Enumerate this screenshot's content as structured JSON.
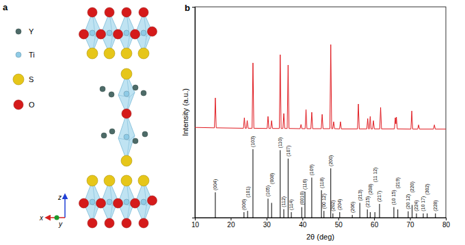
{
  "panel_a": {
    "label": "a",
    "legend": [
      {
        "label": "Y",
        "color": "#4d6b68"
      },
      {
        "label": "Ti",
        "color": "#8fcbe6"
      },
      {
        "label": "S",
        "color": "#e6c619"
      },
      {
        "label": "O",
        "color": "#d51a1a"
      }
    ],
    "axes": [
      {
        "label": "z",
        "color": "#1f3fd6"
      },
      {
        "label": "x",
        "color": "#d61f1f"
      },
      {
        "label": "y",
        "color": "#1a9a2a"
      }
    ]
  },
  "chart_data": {
    "type": "line",
    "title": "b",
    "x_label": "2θ (deg)",
    "y_label": "Intensity (a.u.)",
    "xlim": [
      10,
      80
    ],
    "xticks": [
      10,
      20,
      30,
      40,
      50,
      60,
      70,
      80
    ],
    "ylim": [
      0,
      100
    ],
    "tick_labels": "x",
    "series": [
      {
        "type": "line",
        "color": "#e0191f",
        "x": [
          10,
          15.45,
          15.7,
          15.95,
          23.55,
          23.8,
          24.05,
          24.35,
          24.6,
          24.85,
          25.95,
          26.2,
          26.45,
          30.15,
          30.4,
          30.65,
          31.15,
          31.4,
          31.65,
          33.55,
          33.8,
          34.05,
          34.55,
          34.8,
          35.05,
          35.75,
          36.0,
          36.25,
          39.35,
          39.6,
          39.85,
          40.75,
          41.0,
          41.25,
          42.35,
          42.6,
          42.85,
          45.25,
          45.5,
          45.75,
          47.65,
          47.9,
          48.15,
          48.45,
          48.7,
          48.95,
          50.35,
          50.6,
          50.85,
          55.35,
          55.6,
          55.85,
          57.95,
          58.2,
          58.45,
          58.65,
          58.9,
          59.15,
          59.55,
          59.8,
          60.05,
          61.55,
          61.8,
          62.05,
          65.65,
          65.9,
          66.05,
          66.2,
          66.45,
          70.25,
          70.5,
          70.75,
          72.15,
          72.4,
          72.65,
          76.55,
          76.8,
          77.05,
          80
        ],
        "values": [
          42.8,
          42.6,
          56.8,
          42.6,
          42.4,
          47.4,
          42.4,
          42.4,
          46.1,
          42.4,
          42.4,
          73.4,
          42.4,
          42.3,
          48.0,
          42.3,
          42.3,
          46.0,
          42.3,
          42.3,
          77.3,
          42.3,
          42.3,
          49.4,
          42.3,
          42.3,
          72.4,
          42.3,
          42.2,
          44.2,
          42.2,
          42.2,
          51.3,
          42.2,
          42.2,
          50.0,
          42.2,
          42.2,
          49.0,
          42.2,
          42.2,
          82.1,
          42.2,
          42.2,
          45.5,
          42.2,
          42.1,
          45.5,
          42.1,
          42.1,
          53.9,
          42.1,
          42.1,
          47.0,
          42.1,
          42.1,
          48.0,
          42.1,
          42.1,
          46.0,
          42.1,
          42.1,
          52.3,
          42.1,
          42.1,
          47.4,
          44.5,
          47.7,
          42.1,
          42.0,
          50.6,
          42.0,
          42.0,
          44.0,
          42.0,
          42.0,
          44.0,
          42.0,
          42.0
        ]
      },
      {
        "type": "stem",
        "color": "#000000",
        "x": [
          15.7,
          23.7,
          24.7,
          26.2,
          30.4,
          31.4,
          33.8,
          34.8,
          36.0,
          36.9,
          39.8,
          40.7,
          42.6,
          45.3,
          46.0,
          47.9,
          48.5,
          50.4,
          53.9,
          56.0,
          58.1,
          58.9,
          60.2,
          61.5,
          65.5,
          66.6,
          69.5,
          70.6,
          71.8,
          73.7,
          74.8,
          77.1
        ],
        "values": [
          12,
          2.6,
          3.2,
          32.5,
          9,
          7,
          32,
          4,
          28,
          2.6,
          5,
          12.3,
          19,
          13,
          3.2,
          23.4,
          2,
          2.6,
          1.3,
          7,
          3.9,
          2.6,
          2.6,
          6.5,
          5,
          3.9,
          3,
          6,
          2,
          2,
          2,
          2
        ],
        "labels": [
          "(004)",
          "(006)",
          "(101)",
          "(103)",
          "(105)",
          "(008)",
          "(110)",
          "(112)",
          "(107)",
          "(114)",
          "(0010)",
          "(116)",
          "(109)",
          "(118)",
          "(00 12)",
          "(200)",
          "(202)",
          "(204)",
          "(206)",
          "(213)",
          "(215)",
          "(208)",
          "(11 12)",
          "(217)",
          "(10 15)",
          "(219)",
          "(20 12)",
          "(220)",
          "(224)",
          "(10 17)",
          "(302)",
          "(228)"
        ]
      }
    ]
  }
}
